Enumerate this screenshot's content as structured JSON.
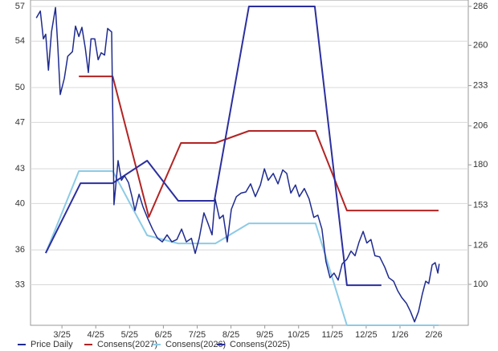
{
  "chart_data": {
    "type": "line",
    "xlim": [
      2.07,
      15.02
    ],
    "xticks": [
      {
        "value": 3,
        "label": "3/25"
      },
      {
        "value": 4,
        "label": "4/25"
      },
      {
        "value": 5,
        "label": "5/25"
      },
      {
        "value": 6,
        "label": "6/25"
      },
      {
        "value": 7,
        "label": "7/25"
      },
      {
        "value": 8,
        "label": "8/25"
      },
      {
        "value": 9,
        "label": "9/25"
      },
      {
        "value": 10,
        "label": "10/25"
      },
      {
        "value": 11,
        "label": "11/25"
      },
      {
        "value": 12,
        "label": "12/25"
      },
      {
        "value": 13,
        "label": "1/26"
      },
      {
        "value": 14,
        "label": "2/26"
      }
    ],
    "ylim": [
      29.5,
      57
    ],
    "yticks": [
      33,
      36,
      40,
      43,
      47,
      50,
      54,
      57
    ],
    "y2lim": [
      72.6,
      286
    ],
    "y2ticks": [
      100,
      126,
      153,
      180,
      206,
      233,
      260,
      286
    ],
    "grid": true,
    "legend": "bottom",
    "series": [
      {
        "name": "Price Daily",
        "color": "#1f2b8f",
        "axis": "y",
        "x": [
          2.24,
          2.36,
          2.45,
          2.52,
          2.6,
          2.69,
          2.81,
          2.88,
          2.95,
          3.07,
          3.17,
          3.31,
          3.4,
          3.5,
          3.59,
          3.69,
          3.78,
          3.86,
          3.97,
          4.07,
          4.16,
          4.26,
          4.35,
          4.47,
          4.54,
          4.66,
          4.76,
          4.85,
          4.97,
          5.07,
          5.16,
          5.28,
          5.4,
          5.54,
          5.68,
          5.83,
          5.97,
          6.11,
          6.25,
          6.4,
          6.54,
          6.68,
          6.83,
          6.94,
          7.06,
          7.2,
          7.32,
          7.44,
          7.53,
          7.66,
          7.77,
          7.89,
          8.01,
          8.16,
          8.3,
          8.44,
          8.58,
          8.72,
          8.87,
          8.99,
          9.1,
          9.25,
          9.39,
          9.53,
          9.65,
          9.77,
          9.91,
          10.02,
          10.17,
          10.31,
          10.45,
          10.57,
          10.69,
          10.81,
          10.93,
          11.05,
          11.17,
          11.29,
          11.43,
          11.55,
          11.67,
          11.79,
          11.91,
          12.02,
          12.14,
          12.26,
          12.4,
          12.55,
          12.67,
          12.81,
          12.93,
          13.05,
          13.19,
          13.31,
          13.43,
          13.55,
          13.66,
          13.76,
          13.85,
          13.95,
          14.04,
          14.12,
          14.16
        ],
        "values": [
          56.0,
          56.6,
          54.2,
          54.6,
          51.5,
          54.8,
          56.9,
          53.4,
          49.4,
          50.8,
          52.7,
          53.1,
          55.3,
          54.4,
          55.2,
          53.4,
          51.3,
          54.2,
          54.2,
          52.4,
          53.0,
          52.8,
          55.1,
          54.8,
          39.9,
          43.7,
          42.0,
          42.4,
          41.8,
          40.6,
          39.4,
          40.8,
          39.7,
          38.7,
          37.8,
          37.0,
          36.7,
          37.3,
          36.7,
          36.9,
          37.8,
          36.7,
          37.0,
          35.7,
          37.0,
          39.2,
          38.3,
          37.3,
          40.4,
          38.7,
          39.0,
          36.7,
          39.5,
          40.6,
          40.9,
          41.0,
          41.7,
          40.6,
          41.6,
          43.0,
          42.0,
          42.6,
          41.7,
          42.9,
          42.6,
          40.9,
          41.6,
          40.6,
          41.3,
          40.4,
          38.8,
          39.0,
          37.8,
          35.0,
          33.6,
          34.0,
          33.4,
          34.8,
          35.2,
          35.9,
          35.5,
          36.7,
          37.6,
          36.6,
          36.9,
          35.5,
          35.4,
          34.5,
          33.6,
          33.3,
          32.5,
          31.9,
          31.4,
          30.7,
          29.8,
          30.7,
          32.2,
          33.3,
          33.1,
          34.7,
          34.9,
          34.0,
          34.8
        ]
      },
      {
        "name": "Consens(2027)",
        "color": "#b22424",
        "axis": "y2",
        "x": [
          3.5,
          4.5,
          5.57,
          6.52,
          7.54,
          8.53,
          10.5,
          11.43,
          14.14
        ],
        "values": [
          239.2,
          239.2,
          145.1,
          194.6,
          194.6,
          202.7,
          202.7,
          149.4,
          149.4
        ]
      },
      {
        "name": "Consens(2026)",
        "color": "#8ccbe6",
        "axis": "y2",
        "x": [
          2.52,
          3.5,
          4.5,
          5.52,
          6.44,
          7.54,
          8.53,
          10.5,
          11.43,
          14.14
        ],
        "values": [
          120.9,
          175.8,
          175.8,
          132.8,
          127.4,
          127.4,
          140.8,
          140.8,
          72.6,
          72.6
        ]
      },
      {
        "name": "Consens(2025)",
        "color": "#2b2f9e",
        "axis": "y2",
        "x": [
          2.52,
          3.55,
          4.5,
          5.52,
          6.44,
          7.51,
          8.53,
          10.48,
          11.43,
          12.45
        ],
        "values": [
          120.9,
          167.7,
          167.7,
          182.8,
          155.9,
          155.9,
          286,
          286,
          99.4,
          99.4
        ]
      }
    ]
  }
}
